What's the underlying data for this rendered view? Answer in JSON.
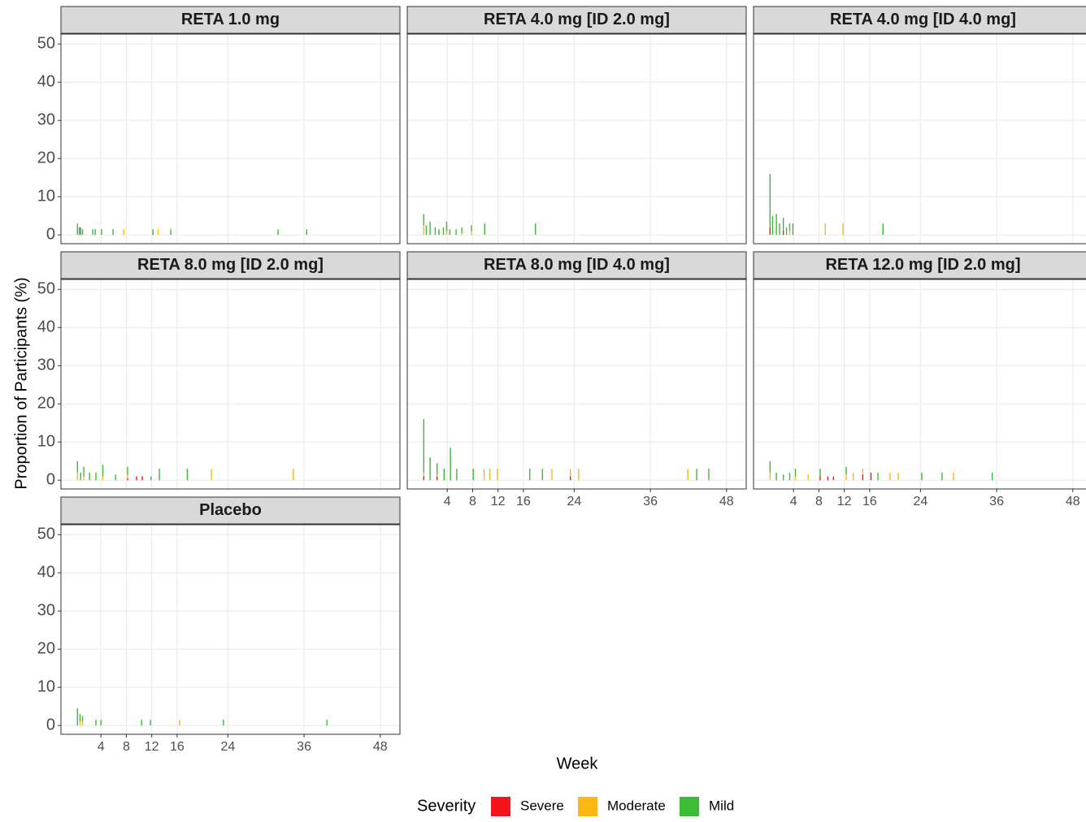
{
  "chart_data": {
    "type": "stacked-bar",
    "y_label": "Proportion of Participants (%)",
    "x_label": "Week",
    "legend_title": "Severity",
    "series": [
      {
        "name": "Severe",
        "color": "#f5141c"
      },
      {
        "name": "Moderate",
        "color": "#fbb714"
      },
      {
        "name": "Mild",
        "color": "#3dba36"
      }
    ],
    "xlim": [
      -2.3,
      51.1
    ],
    "xticks": [
      4,
      8,
      12,
      16,
      24,
      36,
      48
    ],
    "ylim": [
      -2.3,
      52.6
    ],
    "yticks": [
      0,
      10,
      20,
      30,
      40,
      50
    ],
    "grid": true,
    "panels": [
      {
        "title": "RETA 1.0 mg",
        "x": [
          0.3,
          0.6,
          0.8,
          1.1,
          2.7,
          3.1,
          4.1,
          5.9,
          7.6,
          12.2,
          13.0,
          15.0,
          31.9,
          36.4
        ],
        "series": [
          {
            "values": [
              0,
              0,
              0,
              0,
              0,
              0,
              0,
              0,
              0,
              0,
              0,
              0,
              0,
              0
            ]
          },
          {
            "values": [
              0,
              0,
              0,
              0,
              0,
              0,
              0,
              0,
              1.5,
              0,
              1.5,
              0,
              0,
              0
            ]
          },
          {
            "values": [
              3,
              2,
              2,
              1.5,
              1.5,
              1.5,
              1.5,
              1.5,
              0,
              1.5,
              0,
              1.5,
              1.5,
              1.5
            ]
          }
        ]
      },
      {
        "title": "RETA 4.0 mg [ID 2.0 mg]",
        "x": [
          0.3,
          0.7,
          1.3,
          2.1,
          2.7,
          3.4,
          3.9,
          4.4,
          5.4,
          6.3,
          7.8,
          9.9,
          17.9
        ],
        "series": [
          {
            "values": [
              0,
              0,
              0,
              0,
              0,
              0,
              0,
              0,
              0,
              0,
              0,
              0,
              0
            ]
          },
          {
            "values": [
              2.5,
              0,
              0,
              0,
              0,
              0,
              1,
              0,
              0,
              0.5,
              1,
              0,
              0
            ]
          },
          {
            "values": [
              3,
              2.5,
              3.5,
              2,
              1.5,
              2,
              2.5,
              1.5,
              1.5,
              1.5,
              1.5,
              3,
              3
            ]
          }
        ]
      },
      {
        "title": "RETA 4.0 mg [ID 4.0 mg]",
        "x": [
          0.3,
          0.7,
          1.3,
          1.8,
          2.4,
          2.9,
          3.4,
          3.9,
          9.0,
          11.8,
          18.1
        ],
        "series": [
          {
            "values": [
              2,
              0,
              0,
              0,
              1,
              0,
              0,
              0,
              0,
              0,
              0
            ]
          },
          {
            "values": [
              0,
              0,
              0,
              0,
              0,
              0,
              1,
              0,
              3,
              3,
              0
            ]
          },
          {
            "values": [
              14,
              5,
              5.5,
              3,
              3.5,
              2,
              2,
              3,
              0,
              0,
              3
            ]
          }
        ]
      },
      {
        "title": "RETA 8.0 mg [ID 2.0 mg]",
        "x": [
          0.3,
          0.8,
          1.3,
          2.2,
          3.2,
          4.3,
          6.3,
          8.2,
          9.6,
          10.5,
          11.9,
          13.2,
          17.6,
          21.4,
          34.3
        ],
        "series": [
          {
            "values": [
              0,
              0,
              0,
              0,
              0,
              0,
              0,
              0.5,
              1,
              1,
              0,
              0,
              0,
              0,
              0
            ]
          },
          {
            "values": [
              2,
              0,
              1,
              0,
              0,
              1,
              0,
              1,
              0,
              0,
              0,
              0,
              0,
              3,
              3
            ]
          },
          {
            "values": [
              3,
              2,
              2.5,
              2,
              2,
              3,
              1.5,
              2,
              0,
              0,
              1,
              3,
              3,
              0,
              0
            ]
          }
        ]
      },
      {
        "title": "RETA 8.0 mg [ID 4.0 mg]",
        "x": [
          0.3,
          1.3,
          2.4,
          3.5,
          4.5,
          5.5,
          8.1,
          9.8,
          10.7,
          11.9,
          17.0,
          19.0,
          20.5,
          23.4,
          24.7,
          41.9,
          43.3,
          45.2
        ],
        "series": [
          {
            "values": [
              1,
              0,
              1,
              0,
              0,
              0,
              0,
              0,
              0,
              0,
              0,
              0,
              0,
              1,
              0,
              0,
              0,
              0
            ]
          },
          {
            "values": [
              1,
              0,
              0.5,
              0,
              0,
              0,
              0,
              3,
              3,
              3,
              0,
              0,
              3,
              2,
              3,
              3,
              0,
              0
            ]
          },
          {
            "values": [
              14,
              6,
              3,
              3,
              8.5,
              3,
              3,
              0,
              0,
              0,
              3,
              3,
              0,
              0,
              0,
              0,
              3,
              3
            ]
          }
        ]
      },
      {
        "title": "RETA 12.0 mg [ID 2.0 mg]",
        "x": [
          0.3,
          1.3,
          2.4,
          3.4,
          4.3,
          6.3,
          8.2,
          9.4,
          10.3,
          12.3,
          13.4,
          14.9,
          16.2,
          17.3,
          19.2,
          20.5,
          24.2,
          27.4,
          29.2,
          35.3
        ],
        "series": [
          {
            "values": [
              0,
              0,
              0,
              0,
              0,
              0,
              1,
              1,
              1,
              0,
              0,
              1.5,
              2,
              0,
              0,
              0,
              0,
              0,
              0,
              0
            ]
          },
          {
            "values": [
              2,
              0,
              0,
              0,
              1,
              1.5,
              0,
              0,
              0,
              1.5,
              2,
              1.5,
              0,
              0,
              2,
              2,
              0,
              0,
              2,
              0
            ]
          },
          {
            "values": [
              3,
              2,
              1.5,
              2,
              2,
              0,
              2,
              0,
              0,
              2,
              0,
              0,
              0,
              2,
              0,
              0,
              2,
              2,
              0,
              2
            ]
          }
        ]
      },
      {
        "title": "Placebo",
        "x": [
          0.3,
          0.7,
          1.1,
          3.2,
          4.0,
          10.4,
          11.8,
          16.4,
          23.3,
          39.6
        ],
        "series": [
          {
            "values": [
              0,
              0,
              0,
              0,
              0,
              0,
              0,
              0,
              0,
              0
            ]
          },
          {
            "values": [
              0,
              1,
              1,
              0,
              0,
              0,
              0,
              1.5,
              0,
              0
            ]
          },
          {
            "values": [
              4.5,
              2,
              1.5,
              1.5,
              1.5,
              1.5,
              1.5,
              0,
              1.5,
              1.5
            ]
          }
        ]
      }
    ]
  }
}
